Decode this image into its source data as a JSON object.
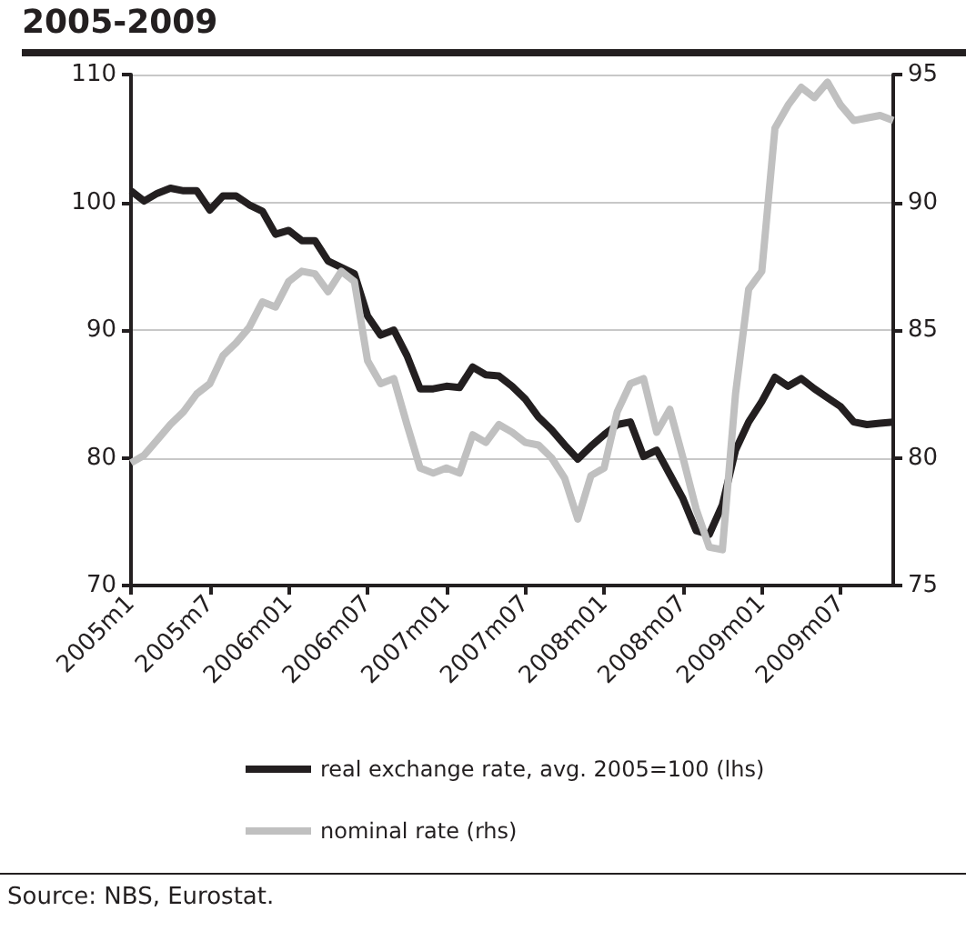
{
  "chart_data": {
    "type": "line",
    "title": "2005-2009",
    "categories": [
      "2005m1",
      null,
      null,
      null,
      null,
      null,
      "2005m7",
      null,
      null,
      null,
      null,
      null,
      "2006m01",
      null,
      null,
      null,
      null,
      null,
      "2006m07",
      null,
      null,
      null,
      null,
      null,
      "2007m01",
      null,
      null,
      null,
      null,
      null,
      "2007m07",
      null,
      null,
      null,
      null,
      null,
      "2008m01",
      null,
      null,
      null,
      null,
      null,
      "2008m07",
      null,
      null,
      null,
      null,
      null,
      "2009m01",
      null,
      null,
      null,
      null,
      null,
      "2009m07",
      null,
      null,
      null,
      null
    ],
    "series": [
      {
        "name": "real exchange rate, avg. 2005=100 (lhs)",
        "color": "#231f20",
        "values": [
          100.9,
          100.1,
          100.7,
          101.1,
          100.9,
          100.9,
          99.4,
          100.5,
          100.5,
          99.8,
          99.3,
          97.5,
          97.8,
          97.0,
          97.0,
          95.4,
          94.9,
          94.4,
          91.1,
          89.6,
          90.0,
          88.0,
          85.4,
          85.4,
          85.6,
          85.5,
          87.1,
          86.5,
          86.4,
          85.6,
          84.6,
          83.2,
          82.2,
          81.0,
          79.9,
          80.9,
          81.8,
          82.6,
          82.8,
          80.1,
          80.6,
          78.7,
          76.8,
          74.3,
          74.0,
          76.3,
          80.6,
          82.8,
          84.4,
          86.3,
          85.6,
          86.2,
          85.4,
          84.7,
          84.0,
          82.8,
          82.6,
          82.7,
          82.8
        ]
      },
      {
        "name": "nominal rate (rhs)",
        "color": "#c0c0c0",
        "axis": "y2",
        "values": [
          79.8,
          80.1,
          80.7,
          81.3,
          81.8,
          82.5,
          82.9,
          84.0,
          84.5,
          85.1,
          86.1,
          85.9,
          86.9,
          87.3,
          87.2,
          86.5,
          87.3,
          86.9,
          83.8,
          82.9,
          83.1,
          81.3,
          79.6,
          79.4,
          79.6,
          79.4,
          80.9,
          80.6,
          81.3,
          81.0,
          80.6,
          80.5,
          80.0,
          79.2,
          77.6,
          79.3,
          79.6,
          81.8,
          82.9,
          83.1,
          81.0,
          81.9,
          80.0,
          78.0,
          76.5,
          76.4,
          82.5,
          86.6,
          87.3,
          92.9,
          93.8,
          94.5,
          94.1,
          94.7,
          93.8,
          93.2,
          93.3,
          93.4,
          93.2
        ]
      }
    ],
    "ylim": [
      70,
      110
    ],
    "yticks": [
      70,
      80,
      90,
      100,
      110
    ],
    "y2lim": [
      75,
      95
    ],
    "y2ticks": [
      75,
      80,
      85,
      90,
      95
    ],
    "grid": "y",
    "legend": "bottom",
    "annotations": [
      "Source: NBS, Eurostat."
    ]
  }
}
